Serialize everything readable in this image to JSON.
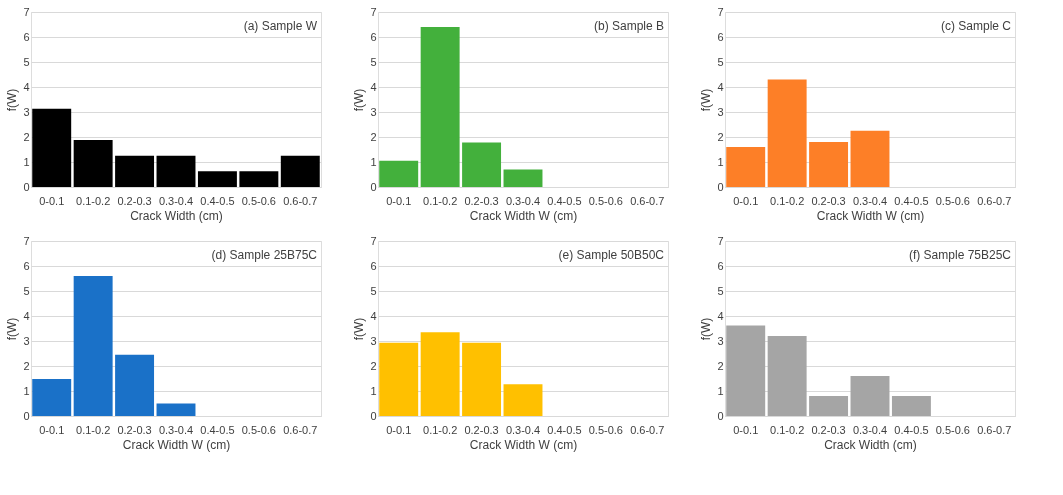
{
  "chart_data": [
    {
      "type": "bar",
      "title": "(a) Sample W",
      "xlabel": "Crack Width (cm)",
      "ylabel": "f(W)",
      "categories": [
        "0-0.1",
        "0.1-0.2",
        "0.2-0.3",
        "0.3-0.4",
        "0.4-0.5",
        "0.5-0.6",
        "0.6-0.7"
      ],
      "values": [
        3.13,
        1.88,
        1.25,
        1.25,
        0.63,
        0.63,
        1.25
      ],
      "color": "#000000",
      "ylim": [
        0,
        7
      ],
      "yticks": [
        0,
        1,
        2,
        3,
        4,
        5,
        6,
        7
      ],
      "grid": "y"
    },
    {
      "type": "bar",
      "title": "(b) Sample B",
      "xlabel": "Crack Width W (cm)",
      "ylabel": "f(W)",
      "categories": [
        "0-0.1",
        "0.1-0.2",
        "0.2-0.3",
        "0.3-0.4",
        "0.4-0.5",
        "0.5-0.6",
        "0.6-0.7"
      ],
      "values": [
        1.05,
        6.4,
        1.78,
        0.7,
        0,
        0,
        0
      ],
      "color": "#43b03c",
      "ylim": [
        0,
        7
      ],
      "yticks": [
        0,
        1,
        2,
        3,
        4,
        5,
        6,
        7
      ],
      "grid": "y"
    },
    {
      "type": "bar",
      "title": "(c) Sample C",
      "xlabel": "Crack Width W (cm)",
      "ylabel": "f(W)",
      "categories": [
        "0-0.1",
        "0.1-0.2",
        "0.2-0.3",
        "0.3-0.4",
        "0.4-0.5",
        "0.5-0.6",
        "0.6-0.7"
      ],
      "values": [
        1.6,
        4.3,
        1.8,
        2.25,
        0,
        0,
        0
      ],
      "color": "#fd7f27",
      "ylim": [
        0,
        7
      ],
      "yticks": [
        0,
        1,
        2,
        3,
        4,
        5,
        6,
        7
      ],
      "grid": "y"
    },
    {
      "type": "bar",
      "title": "(d) Sample 25B75C",
      "xlabel": "Crack Width W (cm)",
      "ylabel": "f(W)",
      "categories": [
        "0-0.1",
        "0.1-0.2",
        "0.2-0.3",
        "0.3-0.4",
        "0.4-0.5",
        "0.5-0.6",
        "0.6-0.7"
      ],
      "values": [
        1.48,
        5.6,
        2.45,
        0.5,
        0,
        0,
        0
      ],
      "color": "#1a71c8",
      "ylim": [
        0,
        7
      ],
      "yticks": [
        0,
        1,
        2,
        3,
        4,
        5,
        6,
        7
      ],
      "grid": "y"
    },
    {
      "type": "bar",
      "title": "(e) Sample 50B50C",
      "xlabel": "Crack Width W (cm)",
      "ylabel": "f(W)",
      "categories": [
        "0-0.1",
        "0.1-0.2",
        "0.2-0.3",
        "0.3-0.4",
        "0.4-0.5",
        "0.5-0.6",
        "0.6-0.7"
      ],
      "values": [
        2.93,
        3.35,
        2.93,
        1.27,
        0,
        0,
        0
      ],
      "color": "#ffc000",
      "ylim": [
        0,
        7
      ],
      "yticks": [
        0,
        1,
        2,
        3,
        4,
        5,
        6,
        7
      ],
      "grid": "y"
    },
    {
      "type": "bar",
      "title": "(f) Sample 75B25C",
      "xlabel": "Crack Width (cm)",
      "ylabel": "f(W)",
      "categories": [
        "0-0.1",
        "0.1-0.2",
        "0.2-0.3",
        "0.3-0.4",
        "0.4-0.5",
        "0.5-0.6",
        "0.6-0.7"
      ],
      "values": [
        3.62,
        3.2,
        0.8,
        1.6,
        0.8,
        0,
        0
      ],
      "color": "#a5a5a5",
      "ylim": [
        0,
        7
      ],
      "yticks": [
        0,
        1,
        2,
        3,
        4,
        5,
        6,
        7
      ],
      "grid": "y"
    }
  ]
}
